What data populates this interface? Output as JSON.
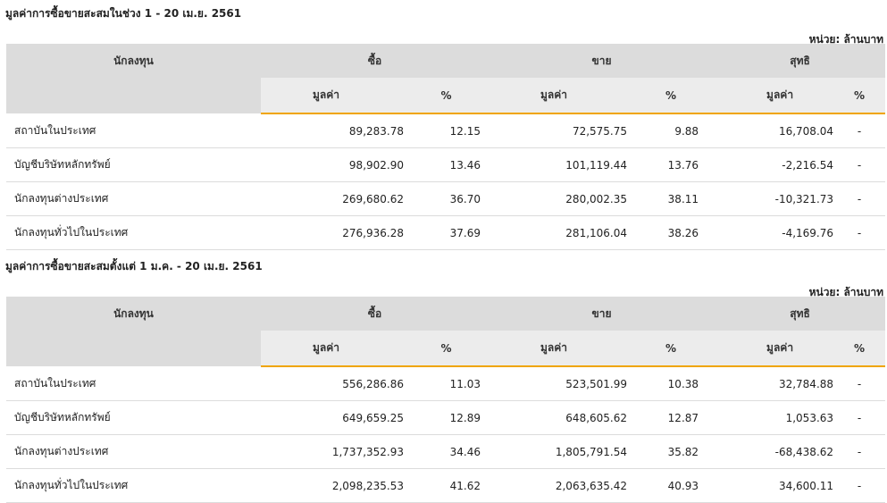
{
  "sections": [
    {
      "title": "มูลค่าการซื้อขายสะสมในช่วง 1 - 20 เม.ย. 2561",
      "unit": "หน่วย: ล้านบาท",
      "headers": {
        "investor": "นักลงทุน",
        "buy": "ซื้อ",
        "sell": "ขาย",
        "net": "สุทธิ",
        "value": "มูลค่า",
        "percent": "%"
      },
      "rows": [
        {
          "name": "สถาบันในประเทศ",
          "buy": "89,283.78",
          "buy_pct": "12.15",
          "sell": "72,575.75",
          "sell_pct": "9.88",
          "net": "16,708.04",
          "net_pct": "-",
          "sign": "pos"
        },
        {
          "name": "บัญชีบริษัทหลักทรัพย์",
          "buy": "98,902.90",
          "buy_pct": "13.46",
          "sell": "101,119.44",
          "sell_pct": "13.76",
          "net": "-2,216.54",
          "net_pct": "-",
          "sign": "neg"
        },
        {
          "name": "นักลงทุนต่างประเทศ",
          "buy": "269,680.62",
          "buy_pct": "36.70",
          "sell": "280,002.35",
          "sell_pct": "38.11",
          "net": "-10,321.73",
          "net_pct": "-",
          "sign": "neg"
        },
        {
          "name": "นักลงทุนทั่วไปในประเทศ",
          "buy": "276,936.28",
          "buy_pct": "37.69",
          "sell": "281,106.04",
          "sell_pct": "38.26",
          "net": "-4,169.76",
          "net_pct": "-",
          "sign": "neg"
        }
      ]
    },
    {
      "title": "มูลค่าการซื้อขายสะสมตั้งแต่ 1 ม.ค. - 20 เม.ย. 2561",
      "unit": "หน่วย: ล้านบาท",
      "headers": {
        "investor": "นักลงทุน",
        "buy": "ซื้อ",
        "sell": "ขาย",
        "net": "สุทธิ",
        "value": "มูลค่า",
        "percent": "%"
      },
      "rows": [
        {
          "name": "สถาบันในประเทศ",
          "buy": "556,286.86",
          "buy_pct": "11.03",
          "sell": "523,501.99",
          "sell_pct": "10.38",
          "net": "32,784.88",
          "net_pct": "-",
          "sign": "pos"
        },
        {
          "name": "บัญชีบริษัทหลักทรัพย์",
          "buy": "649,659.25",
          "buy_pct": "12.89",
          "sell": "648,605.62",
          "sell_pct": "12.87",
          "net": "1,053.63",
          "net_pct": "-",
          "sign": "pos"
        },
        {
          "name": "นักลงทุนต่างประเทศ",
          "buy": "1,737,352.93",
          "buy_pct": "34.46",
          "sell": "1,805,791.54",
          "sell_pct": "35.82",
          "net": "-68,438.62",
          "net_pct": "-",
          "sign": "neg"
        },
        {
          "name": "นักลงทุนทั่วไปในประเทศ",
          "buy": "2,098,235.53",
          "buy_pct": "41.62",
          "sell": "2,063,635.42",
          "sell_pct": "40.93",
          "net": "34,600.11",
          "net_pct": "-",
          "sign": "pos"
        }
      ]
    }
  ],
  "colors": {
    "positive": "#1a8a1a",
    "negative": "#d00000",
    "accent": "#f0a500",
    "header_bg": "#dcdcdc"
  }
}
